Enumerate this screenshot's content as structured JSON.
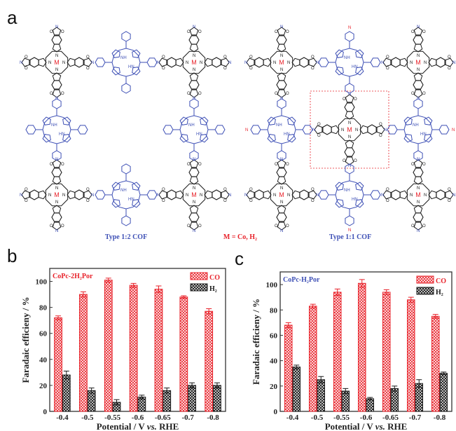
{
  "panel_a": {
    "label": "a",
    "caption_left": "Type 1:2 COF",
    "caption_mid": "M = Co, H₂",
    "caption_right": "Type 1:1 COF",
    "metal_label": "M",
    "colors": {
      "pc": "#1a1a1a",
      "porphyrin": "#3d4fb5",
      "metal": "#e8222a",
      "box": "#e8222a"
    }
  },
  "chart_data": [
    {
      "panel_label": "b",
      "type": "bar",
      "title": "CoPc-2H₂Por",
      "title_color": "#e8222a",
      "xlabel": "Potential / V vs. RHE",
      "xlabel_parts": [
        "Potential / V ",
        "vs.",
        " RHE"
      ],
      "ylabel": "Faradaic efficieny / %",
      "ylim": [
        0,
        110
      ],
      "yticks": [
        0,
        20,
        40,
        60,
        80,
        100
      ],
      "categories": [
        "-0.4",
        "-0.5",
        "-0.55",
        "-0.6",
        "-0.65",
        "-0.7",
        "-0.8"
      ],
      "legend_position": "top-right",
      "series": [
        {
          "name": "CO",
          "color": "#e8222a",
          "values": [
            72,
            90,
            101,
            97,
            94,
            88,
            77
          ],
          "errors": [
            1.5,
            2,
            1.5,
            1.5,
            2.5,
            1,
            2
          ]
        },
        {
          "name": "H₂",
          "color": "#1a1a1a",
          "values": [
            28,
            16,
            7,
            11,
            16,
            20,
            20
          ],
          "errors": [
            3,
            2,
            2,
            1.5,
            2,
            2,
            2
          ]
        }
      ]
    },
    {
      "panel_label": "c",
      "type": "bar",
      "title": "CoPc-H₂Por",
      "title_color": "#3d4fb5",
      "xlabel": "Potential / V vs. RHE",
      "xlabel_parts": [
        "Potential / V ",
        "vs.",
        " RHE"
      ],
      "ylabel": "Faradaic efficieny / %",
      "ylim": [
        0,
        110
      ],
      "yticks": [
        0,
        20,
        40,
        60,
        80,
        100
      ],
      "categories": [
        "-0.4",
        "-0.5",
        "-0.55",
        "-0.6",
        "-0.65",
        "-0.7",
        "-0.8"
      ],
      "legend_position": "top-right",
      "series": [
        {
          "name": "CO",
          "color": "#e8222a",
          "values": [
            68,
            83,
            94,
            101,
            94,
            88,
            75
          ],
          "errors": [
            2,
            1.5,
            2.5,
            3,
            2,
            2,
            1.5
          ]
        },
        {
          "name": "H₂",
          "color": "#1a1a1a",
          "values": [
            35,
            25,
            16,
            10,
            18,
            22,
            30
          ],
          "errors": [
            1.5,
            2.5,
            2,
            1,
            2,
            3,
            1
          ]
        }
      ]
    }
  ]
}
